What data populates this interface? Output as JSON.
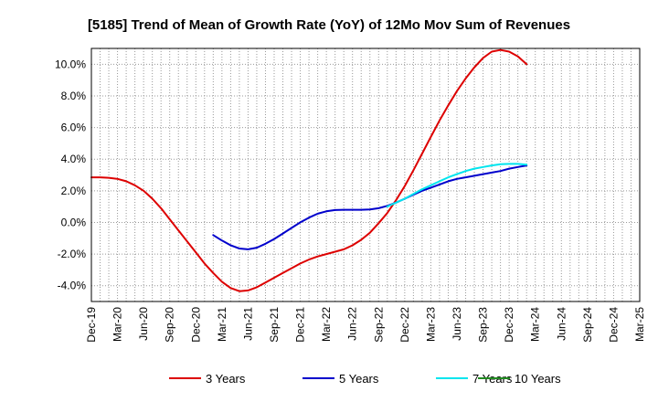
{
  "chart_data": {
    "type": "line",
    "title": "[5185]  Trend of Mean of Growth Rate (YoY) of 12Mo Mov Sum of Revenues",
    "xlabel": "",
    "ylabel": "",
    "ylim": [
      -5.0,
      11.0
    ],
    "y_ticks": [
      -4,
      -2,
      0,
      2,
      4,
      6,
      8,
      10
    ],
    "y_tick_labels": [
      "-4.0%",
      "-2.0%",
      "0.0%",
      "2.0%",
      "4.0%",
      "6.0%",
      "8.0%",
      "10.0%"
    ],
    "x_tick_labels": [
      "Dec-19",
      "Mar-20",
      "Jun-20",
      "Sep-20",
      "Dec-20",
      "Mar-21",
      "Jun-21",
      "Sep-21",
      "Dec-21",
      "Mar-22",
      "Jun-22",
      "Sep-22",
      "Dec-22",
      "Mar-23",
      "Jun-23",
      "Sep-23",
      "Dec-23",
      "Mar-24",
      "Jun-24",
      "Sep-24",
      "Dec-24",
      "Mar-25"
    ],
    "grid": true,
    "legend_position": "bottom",
    "series": [
      {
        "name": "3 Years",
        "color": "#dd0000",
        "start_index": 0,
        "values": [
          2.85,
          2.85,
          2.82,
          2.75,
          2.6,
          2.35,
          2.0,
          1.5,
          0.9,
          0.2,
          -0.5,
          -1.2,
          -1.9,
          -2.6,
          -3.2,
          -3.75,
          -4.15,
          -4.35,
          -4.3,
          -4.1,
          -3.8,
          -3.5,
          -3.2,
          -2.9,
          -2.6,
          -2.35,
          -2.15,
          -2.0,
          -1.85,
          -1.7,
          -1.45,
          -1.1,
          -0.65,
          -0.05,
          0.6,
          1.4,
          2.3,
          3.3,
          4.35,
          5.4,
          6.45,
          7.4,
          8.3,
          9.1,
          9.8,
          10.4,
          10.8,
          10.9,
          10.8,
          10.5,
          10.0
        ]
      },
      {
        "name": "5 Years",
        "color": "#0000cc",
        "start_index": 14,
        "values": [
          -0.8,
          -1.15,
          -1.45,
          -1.65,
          -1.7,
          -1.6,
          -1.35,
          -1.05,
          -0.7,
          -0.35,
          0.0,
          0.3,
          0.55,
          0.7,
          0.78,
          0.8,
          0.8,
          0.8,
          0.82,
          0.9,
          1.05,
          1.25,
          1.5,
          1.75,
          2.0,
          2.2,
          2.4,
          2.6,
          2.75,
          2.85,
          2.95,
          3.05,
          3.15,
          3.25,
          3.4,
          3.5,
          3.6
        ]
      },
      {
        "name": "7 Years",
        "color": "#00e5ee",
        "start_index": 34,
        "values": [
          1.0,
          1.25,
          1.5,
          1.8,
          2.1,
          2.35,
          2.6,
          2.85,
          3.05,
          3.25,
          3.4,
          3.5,
          3.6,
          3.68,
          3.7,
          3.7,
          3.65
        ]
      },
      {
        "name": "10 Years",
        "color": "#228b22",
        "start_index": 0,
        "values": []
      }
    ]
  }
}
